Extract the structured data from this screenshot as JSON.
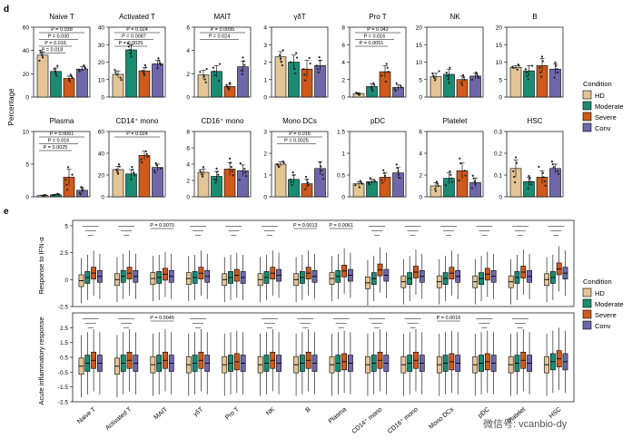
{
  "colors": {
    "HD": "#e3c596",
    "Moderate": "#1a8c72",
    "Severe": "#cf5a1c",
    "Conv": "#6f67aa",
    "axis": "#000000",
    "sig": "#000000"
  },
  "panel_d": {
    "letter": "d",
    "ylabel": "Percentage",
    "legend": {
      "title": "Condition",
      "items": [
        "HD",
        "Moderate",
        "Severe",
        "Conv"
      ]
    }
  },
  "panel_e": {
    "letter": "e",
    "ylabels": [
      "Response to IFN-α",
      "Acute inflammatory response"
    ],
    "legend": {
      "title": "Condition",
      "items": [
        "HD",
        "Moderate",
        "Severe",
        "Conv"
      ]
    },
    "xlabels": [
      "Naive T",
      "Activated T",
      "MAIT",
      "γδT",
      "Pro T",
      "NK",
      "B",
      "Plasma",
      "CD14⁺ mono",
      "CD16⁺ mono",
      "Mono DCs",
      "pDC",
      "Platelet",
      "HSC"
    ],
    "rowA_pvals": [
      "",
      "",
      "P = 0.0070",
      "",
      "",
      "",
      "P = 0.0013",
      "P = 0.0061",
      "",
      "",
      "",
      "",
      "",
      ""
    ],
    "rowB_pvals": [
      "",
      "",
      "P = 0.0045",
      "",
      "",
      "",
      "",
      "",
      "",
      "",
      "P = 0.0016",
      "",
      "",
      ""
    ]
  },
  "watermark": "微信号: vcanbio-dy",
  "chart_data": [
    {
      "type": "bar",
      "title": "Naive T",
      "categories": [
        "HD",
        "Moderate",
        "Severe",
        "Conv"
      ],
      "values": [
        36,
        22,
        16,
        24
      ],
      "errors": [
        3,
        3,
        2,
        2
      ],
      "ylim": [
        0,
        60
      ],
      "yticks": [
        0,
        20,
        40,
        60
      ],
      "annotations": [
        "P = 0.038",
        "P = 0.030",
        "P = 0.016",
        "P = 0.018"
      ]
    },
    {
      "type": "bar",
      "title": "Activated T",
      "categories": [
        "HD",
        "Moderate",
        "Severe",
        "Conv"
      ],
      "values": [
        13,
        27,
        15,
        19
      ],
      "errors": [
        2,
        3,
        2,
        2
      ],
      "ylim": [
        0,
        40
      ],
      "yticks": [
        0,
        10,
        20,
        30,
        40
      ],
      "annotations": [
        "P = 0.024",
        "P = 0.0087",
        "P = 0.0025"
      ]
    },
    {
      "type": "bar",
      "title": "MAIT",
      "categories": [
        "HD",
        "Moderate",
        "Severe",
        "Conv"
      ],
      "values": [
        1.9,
        2.2,
        0.9,
        2.6
      ],
      "errors": [
        0.4,
        0.5,
        0.2,
        0.5
      ],
      "ylim": [
        0,
        6
      ],
      "yticks": [
        0,
        2,
        4,
        6
      ],
      "annotations": [
        "P = 0.0095",
        "P = 0.024"
      ]
    },
    {
      "type": "bar",
      "title": "γδT",
      "categories": [
        "HD",
        "Moderate",
        "Severe",
        "Conv"
      ],
      "values": [
        2.3,
        2.0,
        1.6,
        1.8
      ],
      "errors": [
        0.3,
        0.4,
        0.5,
        0.3
      ],
      "ylim": [
        0,
        4
      ],
      "yticks": [
        0,
        1,
        2,
        3,
        4
      ],
      "annotations": []
    },
    {
      "type": "bar",
      "title": "Pro T",
      "categories": [
        "HD",
        "Moderate",
        "Severe",
        "Conv"
      ],
      "values": [
        0.4,
        1.2,
        2.9,
        1.1
      ],
      "errors": [
        0.1,
        0.3,
        0.7,
        0.3
      ],
      "ylim": [
        0,
        8
      ],
      "yticks": [
        0,
        2,
        4,
        6,
        8
      ],
      "annotations": [
        "P = 0.042",
        "P = 0.016",
        "P = 0.0051"
      ]
    },
    {
      "type": "bar",
      "title": "NK",
      "categories": [
        "HD",
        "Moderate",
        "Severe",
        "Conv"
      ],
      "values": [
        5.8,
        6.5,
        5.0,
        6.0
      ],
      "errors": [
        1.0,
        1.5,
        1.0,
        0.8
      ],
      "ylim": [
        0,
        20
      ],
      "yticks": [
        0,
        5,
        10,
        15,
        20
      ],
      "annotations": []
    },
    {
      "type": "bar",
      "title": "B",
      "categories": [
        "HD",
        "Moderate",
        "Severe",
        "Conv"
      ],
      "values": [
        8.5,
        7.5,
        9.0,
        8.0
      ],
      "errors": [
        0.5,
        1.5,
        2.0,
        1.5
      ],
      "ylim": [
        0,
        20
      ],
      "yticks": [
        0,
        5,
        10,
        15,
        20
      ],
      "annotations": []
    },
    {
      "type": "bar",
      "title": "Plasma",
      "categories": [
        "HD",
        "Moderate",
        "Severe",
        "Conv"
      ],
      "values": [
        0.2,
        0.3,
        3.0,
        1.0
      ],
      "errors": [
        0.05,
        0.1,
        1.2,
        0.4
      ],
      "ylim": [
        0,
        10
      ],
      "yticks": [
        0,
        5,
        10
      ],
      "annotations": [
        "P = 0.0061",
        "P = 0.016",
        "P = 0.0025"
      ]
    },
    {
      "type": "bar",
      "title": "CD14⁺ mono",
      "categories": [
        "HD",
        "Moderate",
        "Severe",
        "Conv"
      ],
      "values": [
        25,
        21,
        38,
        27
      ],
      "errors": [
        3,
        4,
        4,
        3
      ],
      "ylim": [
        0,
        60
      ],
      "yticks": [
        0,
        20,
        40,
        60
      ],
      "annotations": [
        "P = 0.024"
      ]
    },
    {
      "type": "bar",
      "title": "CD16⁺ mono",
      "categories": [
        "HD",
        "Moderate",
        "Severe",
        "Conv"
      ],
      "values": [
        3.0,
        2.5,
        3.4,
        3.2
      ],
      "errors": [
        0.4,
        0.6,
        0.8,
        0.7
      ],
      "ylim": [
        0,
        8
      ],
      "yticks": [
        0,
        2,
        4,
        6,
        8
      ],
      "annotations": []
    },
    {
      "type": "bar",
      "title": "Mono DCs",
      "categories": [
        "HD",
        "Moderate",
        "Severe",
        "Conv"
      ],
      "values": [
        1.5,
        0.8,
        0.6,
        1.3
      ],
      "errors": [
        0.1,
        0.2,
        0.2,
        0.3
      ],
      "ylim": [
        0,
        3
      ],
      "yticks": [
        0,
        1,
        2,
        3
      ],
      "annotations": [
        "P = 0.016",
        "P = 0.0025"
      ]
    },
    {
      "type": "bar",
      "title": "pDC",
      "categories": [
        "HD",
        "Moderate",
        "Severe",
        "Conv"
      ],
      "values": [
        0.3,
        0.35,
        0.45,
        0.55
      ],
      "errors": [
        0.05,
        0.05,
        0.1,
        0.12
      ],
      "ylim": [
        0,
        1.5
      ],
      "yticks": [
        0,
        0.5,
        1.0,
        1.5
      ],
      "annotations": []
    },
    {
      "type": "bar",
      "title": "Platelet",
      "categories": [
        "HD",
        "Moderate",
        "Severe",
        "Conv"
      ],
      "values": [
        1.0,
        1.7,
        2.4,
        1.3
      ],
      "errors": [
        0.3,
        0.5,
        0.7,
        0.4
      ],
      "ylim": [
        0,
        6
      ],
      "yticks": [
        0,
        2,
        4,
        6
      ],
      "annotations": []
    },
    {
      "type": "bar",
      "title": "HSC",
      "categories": [
        "HD",
        "Moderate",
        "Severe",
        "Conv"
      ],
      "values": [
        0.13,
        0.07,
        0.09,
        0.13
      ],
      "errors": [
        0.04,
        0.02,
        0.03,
        0.02
      ],
      "ylim": [
        0,
        0.3
      ],
      "yticks": [
        0,
        0.1,
        0.2,
        0.3
      ],
      "annotations": []
    },
    {
      "type": "box",
      "title": "Response to IFN-α",
      "ylabel": "Response to IFN-α",
      "categories": [
        "Naive T",
        "Activated T",
        "MAIT",
        "γδT",
        "Pro T",
        "NK",
        "B",
        "Plasma",
        "CD14⁺ mono",
        "CD16⁺ mono",
        "Mono DCs",
        "pDC",
        "Platelet",
        "HSC"
      ],
      "series_order": [
        "HD",
        "Moderate",
        "Severe",
        "Conv"
      ],
      "ylim": [
        -2.5,
        5.5
      ],
      "yticks": [
        -2.5,
        0,
        2.5,
        5.0
      ],
      "medians": [
        [
          -0.1,
          0.2,
          0.6,
          0.3
        ],
        [
          0,
          0.3,
          0.6,
          0.3
        ],
        [
          0.1,
          0.2,
          0.5,
          0.3
        ],
        [
          0.1,
          0.2,
          0.6,
          0.3
        ],
        [
          0,
          0.2,
          0.4,
          0.2
        ],
        [
          0,
          0.2,
          0.6,
          0.4
        ],
        [
          0,
          0.2,
          0.6,
          0.3
        ],
        [
          0.1,
          0.3,
          0.8,
          0.4
        ],
        [
          -0.3,
          0.1,
          0.9,
          0.4
        ],
        [
          -0.2,
          0.1,
          0.7,
          0.3
        ],
        [
          -0.2,
          0.1,
          0.6,
          0.3
        ],
        [
          -0.2,
          0.1,
          0.5,
          0.3
        ],
        [
          -0.2,
          0.2,
          0.7,
          0.3
        ],
        [
          0,
          0.2,
          1.0,
          0.6
        ]
      ]
    },
    {
      "type": "box",
      "title": "Acute inflammatory response",
      "ylabel": "Acute inflammatory response",
      "categories": [
        "Naive T",
        "Activated T",
        "MAIT",
        "γδT",
        "Pro T",
        "NK",
        "B",
        "Plasma",
        "CD14⁺ mono",
        "CD16⁺ mono",
        "Mono DCs",
        "pDC",
        "Platelet",
        "HSC"
      ],
      "series_order": [
        "HD",
        "Moderate",
        "Severe",
        "Conv"
      ],
      "ylim": [
        -2.5,
        3.5
      ],
      "yticks": [
        -2.5,
        -1.5,
        -0.5,
        0.5,
        1.5,
        2.5
      ],
      "medians": [
        [
          -0.1,
          0.1,
          0.3,
          0.1
        ],
        [
          -0.1,
          0.1,
          0.3,
          0.1
        ],
        [
          0,
          0.1,
          0.3,
          0.1
        ],
        [
          0,
          0.1,
          0.3,
          0.1
        ],
        [
          0,
          0.1,
          0.2,
          0.1
        ],
        [
          0,
          0.1,
          0.3,
          0.1
        ],
        [
          0,
          0.1,
          0.3,
          0.1
        ],
        [
          0,
          0.1,
          0.2,
          0.1
        ],
        [
          0,
          0.1,
          0.3,
          0.1
        ],
        [
          0,
          0.1,
          0.3,
          0.1
        ],
        [
          0,
          0.1,
          0.2,
          0.1
        ],
        [
          0,
          0.1,
          0.2,
          0.1
        ],
        [
          0,
          0.1,
          0.3,
          0.1
        ],
        [
          0,
          0.2,
          0.4,
          0.2
        ]
      ]
    }
  ]
}
